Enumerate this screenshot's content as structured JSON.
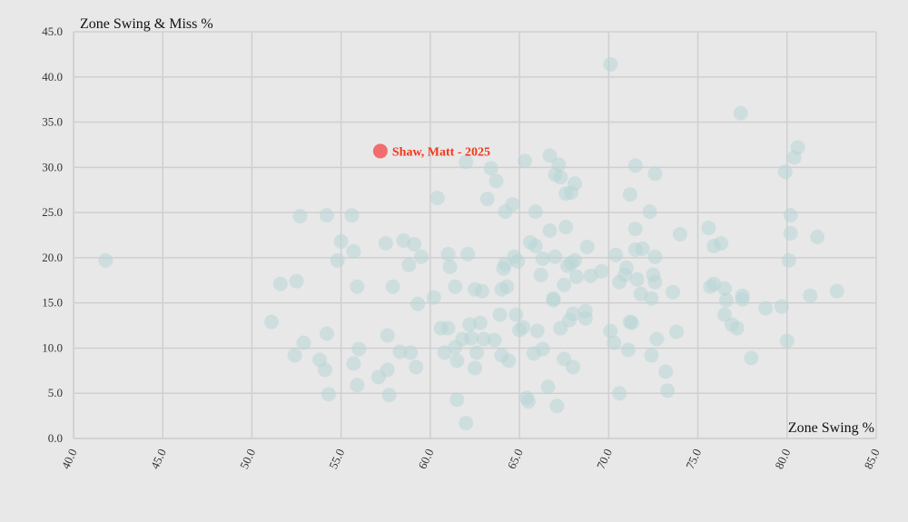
{
  "chart_data": {
    "type": "scatter",
    "title": "",
    "xlabel": "Zone Swing %",
    "ylabel": "Zone Swing & Miss %",
    "xlim": [
      40,
      85
    ],
    "ylim": [
      0,
      45
    ],
    "x_ticks": [
      "40.0",
      "45.0",
      "50.0",
      "55.0",
      "60.0",
      "65.0",
      "70.0",
      "75.0",
      "80.0",
      "85.0"
    ],
    "y_ticks": [
      "0.0",
      "5.0",
      "10.0",
      "15.0",
      "20.0",
      "25.0",
      "30.0",
      "35.0",
      "40.0",
      "45.0"
    ],
    "grid": true,
    "point_color": "#b8d5d6",
    "highlight": {
      "label": "Shaw, Matt - 2025",
      "x": 57.2,
      "y": 31.8,
      "color": "#f26d6d",
      "label_color": "#f03a1e"
    },
    "points": [
      [
        41.8,
        19.7
      ],
      [
        51.1,
        12.9
      ],
      [
        51.6,
        17.1
      ],
      [
        52.4,
        9.2
      ],
      [
        52.5,
        17.4
      ],
      [
        52.7,
        24.6
      ],
      [
        52.9,
        10.6
      ],
      [
        53.8,
        8.7
      ],
      [
        54.1,
        7.6
      ],
      [
        54.2,
        11.6
      ],
      [
        54.2,
        24.7
      ],
      [
        54.3,
        4.9
      ],
      [
        54.8,
        19.7
      ],
      [
        55.0,
        21.8
      ],
      [
        55.6,
        24.7
      ],
      [
        55.7,
        8.3
      ],
      [
        55.7,
        20.7
      ],
      [
        55.9,
        5.9
      ],
      [
        55.9,
        16.8
      ],
      [
        56.0,
        9.9
      ],
      [
        57.1,
        6.8
      ],
      [
        57.5,
        21.6
      ],
      [
        57.6,
        11.4
      ],
      [
        57.6,
        7.6
      ],
      [
        57.7,
        4.8
      ],
      [
        57.9,
        16.8
      ],
      [
        58.3,
        9.6
      ],
      [
        58.5,
        21.9
      ],
      [
        58.8,
        19.2
      ],
      [
        58.9,
        9.5
      ],
      [
        59.1,
        21.5
      ],
      [
        59.2,
        7.9
      ],
      [
        59.3,
        14.9
      ],
      [
        59.5,
        20.1
      ],
      [
        60.2,
        15.6
      ],
      [
        60.4,
        26.6
      ],
      [
        60.6,
        12.2
      ],
      [
        60.8,
        9.5
      ],
      [
        61.0,
        12.2
      ],
      [
        61.0,
        20.4
      ],
      [
        61.1,
        19.0
      ],
      [
        61.4,
        16.8
      ],
      [
        61.4,
        10.1
      ],
      [
        61.5,
        8.6
      ],
      [
        61.5,
        4.3
      ],
      [
        61.8,
        11.0
      ],
      [
        62.0,
        1.7
      ],
      [
        62.0,
        30.6
      ],
      [
        62.1,
        20.4
      ],
      [
        62.2,
        12.6
      ],
      [
        62.3,
        11.1
      ],
      [
        62.5,
        16.5
      ],
      [
        62.5,
        7.8
      ],
      [
        62.6,
        9.5
      ],
      [
        62.8,
        12.8
      ],
      [
        62.9,
        16.3
      ],
      [
        63.0,
        11.0
      ],
      [
        63.2,
        26.5
      ],
      [
        63.4,
        29.9
      ],
      [
        63.6,
        10.9
      ],
      [
        63.7,
        28.5
      ],
      [
        63.9,
        13.7
      ],
      [
        64.0,
        16.5
      ],
      [
        64.0,
        9.2
      ],
      [
        64.1,
        18.8
      ],
      [
        64.2,
        25.1
      ],
      [
        64.2,
        19.3
      ],
      [
        64.3,
        16.8
      ],
      [
        64.4,
        8.6
      ],
      [
        64.6,
        25.9
      ],
      [
        64.7,
        20.1
      ],
      [
        64.8,
        13.7
      ],
      [
        64.9,
        19.6
      ],
      [
        65.0,
        12.0
      ],
      [
        65.2,
        12.3
      ],
      [
        65.3,
        30.7
      ],
      [
        65.4,
        4.5
      ],
      [
        65.5,
        4.1
      ],
      [
        65.6,
        21.7
      ],
      [
        65.8,
        9.4
      ],
      [
        65.9,
        21.3
      ],
      [
        65.9,
        25.1
      ],
      [
        66.0,
        11.9
      ],
      [
        66.2,
        18.1
      ],
      [
        66.3,
        9.9
      ],
      [
        66.3,
        19.9
      ],
      [
        66.6,
        5.7
      ],
      [
        66.7,
        31.3
      ],
      [
        66.7,
        23.0
      ],
      [
        66.9,
        15.5
      ],
      [
        66.9,
        15.3
      ],
      [
        67.0,
        20.1
      ],
      [
        67.0,
        29.2
      ],
      [
        67.1,
        3.6
      ],
      [
        67.2,
        30.3
      ],
      [
        67.3,
        28.9
      ],
      [
        67.3,
        12.2
      ],
      [
        67.5,
        8.8
      ],
      [
        67.5,
        17.0
      ],
      [
        67.6,
        23.4
      ],
      [
        67.6,
        27.1
      ],
      [
        67.7,
        19.1
      ],
      [
        67.8,
        13.1
      ],
      [
        67.9,
        19.4
      ],
      [
        67.9,
        27.2
      ],
      [
        68.0,
        13.8
      ],
      [
        68.0,
        7.9
      ],
      [
        68.1,
        28.2
      ],
      [
        68.1,
        19.7
      ],
      [
        68.2,
        17.9
      ],
      [
        68.7,
        14.1
      ],
      [
        68.7,
        13.3
      ],
      [
        68.8,
        21.2
      ],
      [
        69.0,
        18.0
      ],
      [
        69.6,
        18.5
      ],
      [
        70.1,
        41.4
      ],
      [
        70.1,
        11.9
      ],
      [
        70.3,
        10.6
      ],
      [
        70.4,
        20.3
      ],
      [
        70.6,
        17.3
      ],
      [
        70.6,
        5.0
      ],
      [
        70.9,
        18.1
      ],
      [
        71.0,
        18.9
      ],
      [
        71.1,
        9.8
      ],
      [
        71.2,
        27.0
      ],
      [
        71.2,
        12.9
      ],
      [
        71.3,
        12.8
      ],
      [
        71.5,
        23.2
      ],
      [
        71.5,
        30.2
      ],
      [
        71.5,
        20.9
      ],
      [
        71.6,
        17.6
      ],
      [
        71.8,
        16.0
      ],
      [
        71.9,
        21.0
      ],
      [
        72.3,
        25.1
      ],
      [
        72.4,
        9.2
      ],
      [
        72.4,
        15.5
      ],
      [
        72.5,
        18.1
      ],
      [
        72.6,
        17.3
      ],
      [
        72.6,
        29.3
      ],
      [
        72.6,
        20.1
      ],
      [
        72.7,
        11.0
      ],
      [
        73.2,
        7.4
      ],
      [
        73.3,
        5.3
      ],
      [
        73.6,
        16.2
      ],
      [
        73.8,
        11.8
      ],
      [
        74.0,
        22.6
      ],
      [
        75.6,
        23.3
      ],
      [
        75.7,
        16.8
      ],
      [
        75.9,
        17.1
      ],
      [
        75.9,
        21.3
      ],
      [
        76.3,
        21.6
      ],
      [
        76.5,
        13.7
      ],
      [
        76.5,
        16.6
      ],
      [
        76.6,
        15.3
      ],
      [
        76.9,
        12.6
      ],
      [
        77.2,
        12.2
      ],
      [
        77.4,
        36.0
      ],
      [
        77.5,
        15.8
      ],
      [
        77.5,
        15.4
      ],
      [
        78.0,
        8.9
      ],
      [
        78.8,
        14.4
      ],
      [
        79.7,
        14.6
      ],
      [
        79.9,
        29.5
      ],
      [
        80.0,
        10.8
      ],
      [
        80.1,
        19.7
      ],
      [
        80.2,
        22.7
      ],
      [
        80.2,
        24.7
      ],
      [
        80.4,
        31.1
      ],
      [
        80.6,
        32.2
      ],
      [
        81.3,
        15.8
      ],
      [
        81.7,
        22.3
      ],
      [
        82.8,
        16.3
      ]
    ]
  }
}
